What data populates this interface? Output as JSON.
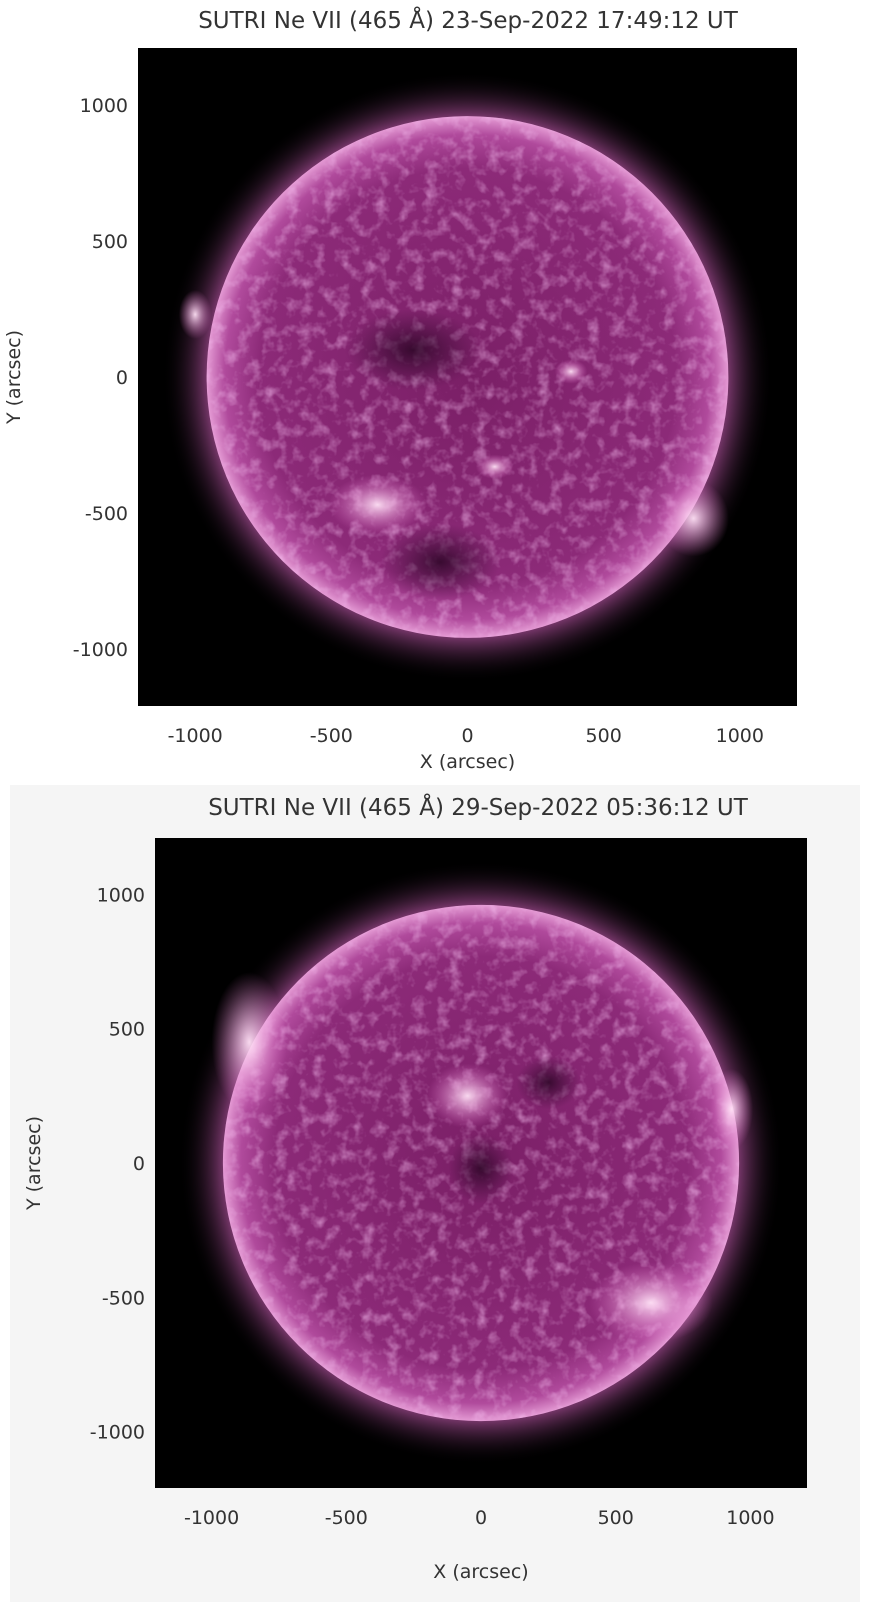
{
  "chart_data": [
    {
      "type": "image",
      "title": "SUTRI Ne VII (465 Å) 23-Sep-2022 17:49:12 UT",
      "x_label": "X (arcsec)",
      "y_label": "Y (arcsec)",
      "xlim": [
        -1210,
        1210
      ],
      "ylim": [
        -1210,
        1210
      ],
      "xticks": [
        -1000,
        -500,
        0,
        500,
        1000
      ],
      "yticks": [
        -1000,
        -500,
        0,
        500,
        1000
      ]
    },
    {
      "type": "image",
      "title": "SUTRI Ne VII (465 Å) 29-Sep-2022 05:36:12 UT",
      "x_label": "X (arcsec)",
      "y_label": "Y (arcsec)",
      "xlim": [
        -1210,
        1210
      ],
      "ylim": [
        -1210,
        1210
      ],
      "xticks": [
        -1000,
        -500,
        0,
        500,
        1000
      ],
      "yticks": [
        -1000,
        -500,
        0,
        500,
        1000
      ]
    }
  ]
}
